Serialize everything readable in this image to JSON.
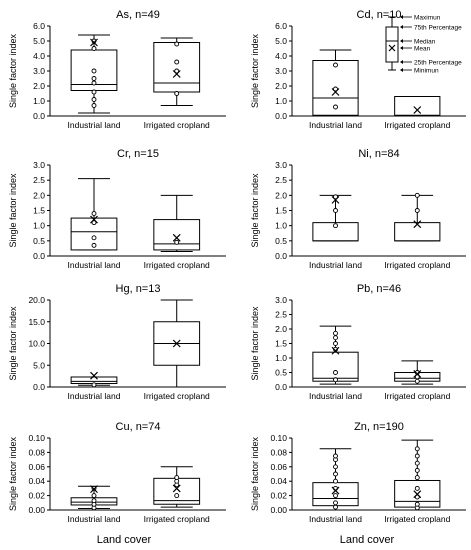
{
  "figure": {
    "xlabel_left": "Land cover",
    "xlabel_right": "Land cover"
  },
  "chart_data": [
    {
      "type": "box",
      "title": "As, n=49",
      "ylabel": "Single factor index",
      "ylim": [
        0,
        6
      ],
      "yticks": [
        "0.0",
        "1.0",
        "2.0",
        "3.0",
        "4.0",
        "5.0",
        "6.0"
      ],
      "categories": [
        "Industrial land",
        "Irrigated cropland"
      ],
      "boxes": [
        {
          "category": "Industrial land",
          "min": 0.2,
          "q1": 1.7,
          "median": 2.1,
          "q3": 4.4,
          "max": 5.4,
          "mean": 4.9,
          "points": [
            0.7,
            1.1,
            1.6,
            2.2,
            2.5,
            3.0,
            4.5,
            5.0
          ]
        },
        {
          "category": "Irrigated cropland",
          "min": 0.7,
          "q1": 1.6,
          "median": 2.2,
          "q3": 4.9,
          "max": 5.2,
          "mean": 2.8,
          "points": [
            1.5,
            3.0,
            3.6,
            4.8
          ]
        }
      ]
    },
    {
      "type": "box",
      "title": "Cd, n=10",
      "ylabel": "Single factor index",
      "ylim": [
        0,
        6
      ],
      "yticks": [
        "0.0",
        "1.0",
        "2.0",
        "3.0",
        "4.0",
        "5.0",
        "6.0"
      ],
      "categories": [
        "Industrial land",
        "Irrigated cropland"
      ],
      "legend": [
        "Maximun",
        "75th Percentage",
        "Median",
        "Mean",
        "25th Percentage",
        "Minimun"
      ],
      "boxes": [
        {
          "category": "Industrial land",
          "min": 0.0,
          "q1": 0.05,
          "median": 1.2,
          "q3": 3.7,
          "max": 4.4,
          "mean": 1.6,
          "points": [
            0.6,
            1.8,
            3.4
          ]
        },
        {
          "category": "Irrigated cropland",
          "min": 0.0,
          "q1": 0.0,
          "median": 0.05,
          "q3": 1.3,
          "max": 1.3,
          "mean": 0.4,
          "points": []
        }
      ]
    },
    {
      "type": "box",
      "title": "Cr, n=15",
      "ylabel": "Single factor index",
      "ylim": [
        0,
        3
      ],
      "yticks": [
        "0.0",
        "0.5",
        "1.0",
        "1.5",
        "2.0",
        "2.5",
        "3.0"
      ],
      "categories": [
        "Industrial land",
        "Irrigated cropland"
      ],
      "boxes": [
        {
          "category": "Industrial land",
          "min": 0.2,
          "q1": 0.2,
          "median": 0.8,
          "q3": 1.25,
          "max": 2.55,
          "mean": 1.2,
          "points": [
            0.35,
            0.6,
            1.1,
            1.4
          ]
        },
        {
          "category": "Irrigated cropland",
          "min": 0.15,
          "q1": 0.2,
          "median": 0.4,
          "q3": 1.2,
          "max": 2.0,
          "mean": 0.6,
          "points": [
            0.45
          ]
        }
      ]
    },
    {
      "type": "box",
      "title": "Ni, n=84",
      "ylabel": "Single factor index",
      "ylim": [
        0,
        3
      ],
      "yticks": [
        "0.0",
        "0.5",
        "1.0",
        "1.5",
        "2.0",
        "2.5",
        "3.0"
      ],
      "categories": [
        "Industrial land",
        "Irrigated cropland"
      ],
      "boxes": [
        {
          "category": "Industrial land",
          "min": 0.5,
          "q1": 0.5,
          "median": 0.5,
          "q3": 1.1,
          "max": 2.0,
          "mean": 1.85,
          "points": [
            1.0,
            1.5,
            1.95
          ]
        },
        {
          "category": "Irrigated cropland",
          "min": 0.5,
          "q1": 0.5,
          "median": 0.5,
          "q3": 1.1,
          "max": 2.0,
          "mean": 1.05,
          "points": [
            1.5,
            2.0
          ]
        }
      ]
    },
    {
      "type": "box",
      "title": "Hg, n=13",
      "ylabel": "Single factor index",
      "ylim": [
        0,
        20
      ],
      "yticks": [
        "0.0",
        "5.0",
        "10.0",
        "15.0",
        "20.0"
      ],
      "categories": [
        "Industrial land",
        "Irrigated cropland"
      ],
      "boxes": [
        {
          "category": "Industrial land",
          "min": 0.4,
          "q1": 0.8,
          "median": 1.3,
          "q3": 2.3,
          "max": 2.3,
          "mean": 2.6,
          "points": [
            0.5
          ]
        },
        {
          "category": "Irrigated cropland",
          "min": 0.0,
          "q1": 5.0,
          "median": 10.0,
          "q3": 15.0,
          "max": 20.0,
          "mean": 10.0,
          "points": []
        }
      ]
    },
    {
      "type": "box",
      "title": "Pb, n=46",
      "ylabel": "Single factor index",
      "ylim": [
        0,
        3
      ],
      "yticks": [
        "0.0",
        "0.5",
        "1.0",
        "1.5",
        "2.0",
        "2.5",
        "3.0"
      ],
      "categories": [
        "Industrial land",
        "Irrigated cropland"
      ],
      "boxes": [
        {
          "category": "Industrial land",
          "min": 0.1,
          "q1": 0.2,
          "median": 0.3,
          "q3": 1.2,
          "max": 2.1,
          "mean": 1.25,
          "points": [
            0.25,
            0.5,
            1.3,
            1.5,
            1.7,
            1.85
          ]
        },
        {
          "category": "Irrigated cropland",
          "min": 0.1,
          "q1": 0.2,
          "median": 0.3,
          "q3": 0.5,
          "max": 0.9,
          "mean": 0.45,
          "points": [
            0.2,
            0.35,
            0.5
          ]
        }
      ]
    },
    {
      "type": "box",
      "title": "Cu, n=74",
      "ylabel": "Single factor index",
      "ylim": [
        0,
        0.1
      ],
      "yticks": [
        "0.00",
        "0.02",
        "0.04",
        "0.06",
        "0.08",
        "0.10"
      ],
      "categories": [
        "Industrial land",
        "Irrigated cropland"
      ],
      "boxes": [
        {
          "category": "Industrial land",
          "min": 0.002,
          "q1": 0.007,
          "median": 0.011,
          "q3": 0.017,
          "max": 0.033,
          "mean": 0.029,
          "points": [
            0.003,
            0.008,
            0.013,
            0.02,
            0.03
          ]
        },
        {
          "category": "Irrigated cropland",
          "min": 0.004,
          "q1": 0.008,
          "median": 0.013,
          "q3": 0.044,
          "max": 0.06,
          "mean": 0.03,
          "points": [
            0.02,
            0.035,
            0.04,
            0.045
          ]
        }
      ]
    },
    {
      "type": "box",
      "title": "Zn, n=190",
      "ylabel": "Single factor index",
      "ylim": [
        0,
        0.1
      ],
      "yticks": [
        "0.00",
        "0.02",
        "0.04",
        "0.06",
        "0.08",
        "0.10"
      ],
      "categories": [
        "Industrial land",
        "Irrigated cropland"
      ],
      "boxes": [
        {
          "category": "Industrial land",
          "min": 0.0,
          "q1": 0.006,
          "median": 0.016,
          "q3": 0.038,
          "max": 0.085,
          "mean": 0.027,
          "points": [
            0.004,
            0.01,
            0.02,
            0.03,
            0.04,
            0.05,
            0.06,
            0.07,
            0.075
          ]
        },
        {
          "category": "Irrigated cropland",
          "min": 0.0,
          "q1": 0.004,
          "median": 0.012,
          "q3": 0.041,
          "max": 0.097,
          "mean": 0.022,
          "points": [
            0.003,
            0.008,
            0.018,
            0.03,
            0.045,
            0.055,
            0.065,
            0.075,
            0.085
          ]
        }
      ]
    }
  ]
}
